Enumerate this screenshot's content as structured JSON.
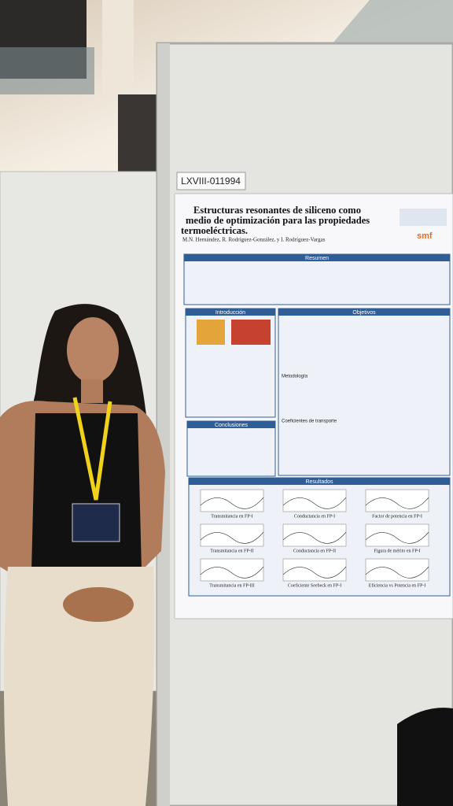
{
  "badge": "LXVIII-011994",
  "poster": {
    "title_lines": [
      "Estructuras resonantes de siliceno como",
      "medio de optimización para las propiedades",
      "termoeléctricas."
    ],
    "authors": "M.N. Hernández, R. Rodríguez-González, y I. Rodríguez-Vargas",
    "logo": "smf",
    "sections": {
      "abstract": "Resumen",
      "intro": "Introducción",
      "objectives": "Objetivos",
      "conclusions": "Conclusiones",
      "results": "Resultados"
    },
    "subheads": [
      "Metodología",
      "Coeficientes de transporte"
    ],
    "plot_captions": [
      "Transmitancia en FP-I",
      "Conductancia en FP-I",
      "Factor de potencia en FP-I",
      "Transmitancia en FP-II",
      "Conductancia en FP-II",
      "Figura de mérito en FP-I",
      "Transmitancia en FP-III",
      "Coeficiente Seebeck en FP-I",
      "Eficiencia vs Potencia en FP-I"
    ]
  }
}
